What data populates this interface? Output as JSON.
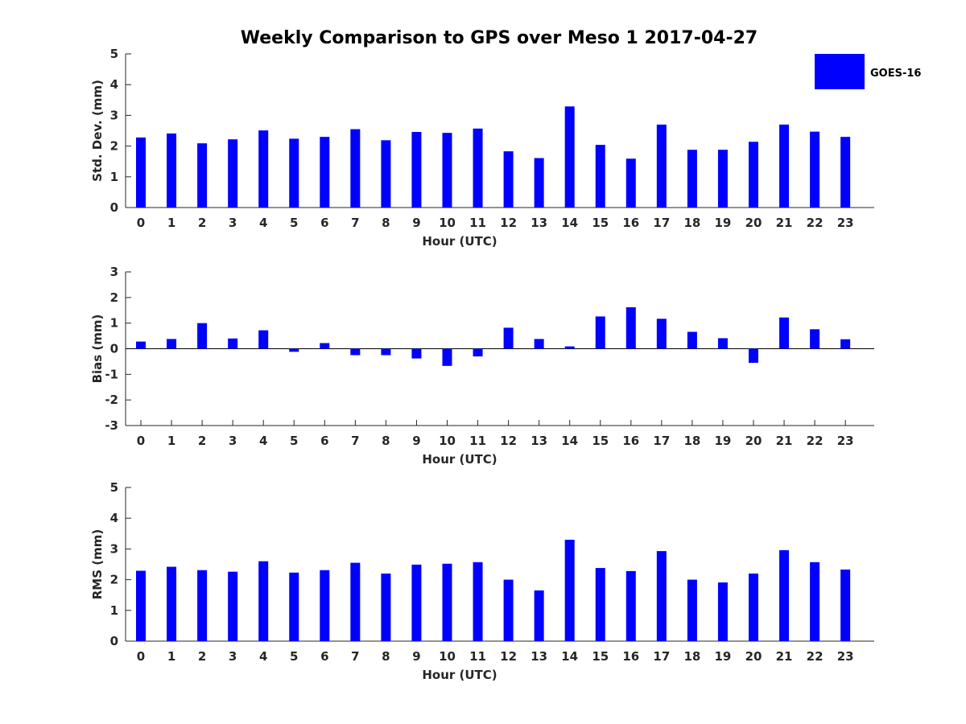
{
  "figure": {
    "title": "Weekly Comparison to GPS over Meso 1 2017-04-27"
  },
  "legend": {
    "label": "GOES-16",
    "color": "#0000ff"
  },
  "chart_data": [
    {
      "type": "bar",
      "xlabel": "Hour (UTC)",
      "ylabel": "Std. Dev. (mm)",
      "ylim": [
        0,
        5
      ],
      "yticks": [
        0,
        1,
        2,
        3,
        4,
        5
      ],
      "categories": [
        "0",
        "1",
        "2",
        "3",
        "4",
        "5",
        "6",
        "7",
        "8",
        "9",
        "10",
        "11",
        "12",
        "13",
        "14",
        "15",
        "16",
        "17",
        "18",
        "19",
        "20",
        "21",
        "22",
        "23"
      ],
      "series": [
        {
          "name": "GOES-16",
          "values": [
            2.28,
            2.41,
            2.09,
            2.22,
            2.51,
            2.24,
            2.3,
            2.55,
            2.19,
            2.46,
            2.43,
            2.57,
            1.83,
            1.61,
            3.29,
            2.04,
            1.59,
            2.7,
            1.88,
            1.88,
            2.14,
            2.7,
            2.47,
            2.3
          ]
        }
      ],
      "grid": false,
      "legend": "top-right"
    },
    {
      "type": "bar",
      "xlabel": "Hour (UTC)",
      "ylabel": "Bias (mm)",
      "ylim": [
        -3,
        3
      ],
      "yticks": [
        -3,
        -2,
        -1,
        0,
        1,
        2,
        3
      ],
      "categories": [
        "0",
        "1",
        "2",
        "3",
        "4",
        "5",
        "6",
        "7",
        "8",
        "9",
        "10",
        "11",
        "12",
        "13",
        "14",
        "15",
        "16",
        "17",
        "18",
        "19",
        "20",
        "21",
        "22",
        "23"
      ],
      "series": [
        {
          "name": "GOES-16",
          "values": [
            0.28,
            0.38,
            1.0,
            0.4,
            0.72,
            -0.12,
            0.22,
            -0.25,
            -0.25,
            -0.38,
            -0.67,
            -0.3,
            0.82,
            0.38,
            0.09,
            1.26,
            1.62,
            1.17,
            0.66,
            0.41,
            -0.55,
            1.22,
            0.76,
            0.37
          ]
        }
      ],
      "grid": false,
      "zero_line": true
    },
    {
      "type": "bar",
      "xlabel": "Hour (UTC)",
      "ylabel": "RMS (mm)",
      "ylim": [
        0,
        5
      ],
      "yticks": [
        0,
        1,
        2,
        3,
        4,
        5
      ],
      "categories": [
        "0",
        "1",
        "2",
        "3",
        "4",
        "5",
        "6",
        "7",
        "8",
        "9",
        "10",
        "11",
        "12",
        "13",
        "14",
        "15",
        "16",
        "17",
        "18",
        "19",
        "20",
        "21",
        "22",
        "23"
      ],
      "series": [
        {
          "name": "GOES-16",
          "values": [
            2.29,
            2.42,
            2.31,
            2.26,
            2.6,
            2.23,
            2.31,
            2.55,
            2.2,
            2.49,
            2.52,
            2.57,
            2.0,
            1.65,
            3.3,
            2.38,
            2.28,
            2.93,
            2.0,
            1.91,
            2.2,
            2.96,
            2.57,
            2.33
          ]
        }
      ],
      "grid": false
    }
  ]
}
